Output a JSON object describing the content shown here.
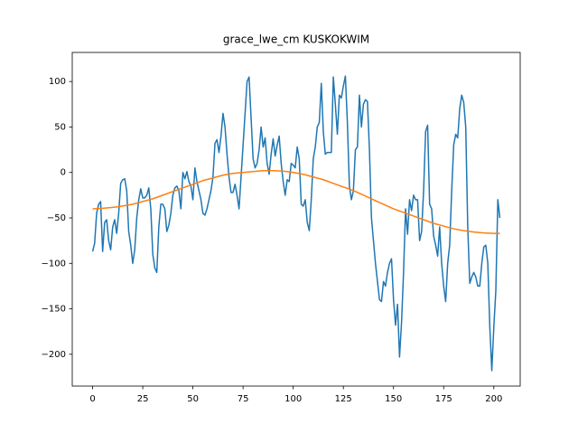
{
  "chart_data": {
    "type": "line",
    "title": "grace_lwe_cm KUSKOKWIM",
    "xlim": [
      -10.15,
      213.15
    ],
    "ylim": [
      -235,
      132
    ],
    "xticks": [
      0,
      25,
      50,
      75,
      100,
      125,
      150,
      175,
      200
    ],
    "yticks": [
      {
        "value": -200,
        "label": "−200"
      },
      {
        "value": -150,
        "label": "−150"
      },
      {
        "value": -100,
        "label": "−100"
      },
      {
        "value": -50,
        "label": "−50"
      },
      0,
      50,
      100
    ],
    "grid": false,
    "series": [
      {
        "color": "#1f77b4",
        "x": [
          0,
          1,
          2,
          3,
          4,
          5,
          6,
          7,
          8,
          9,
          10,
          11,
          12,
          13,
          14,
          15,
          16,
          17,
          18,
          19,
          20,
          21,
          22,
          23,
          24,
          25,
          26,
          27,
          28,
          29,
          30,
          31,
          32,
          33,
          34,
          35,
          36,
          37,
          38,
          39,
          40,
          41,
          42,
          43,
          44,
          45,
          46,
          47,
          48,
          49,
          50,
          51,
          52,
          53,
          54,
          55,
          56,
          57,
          58,
          59,
          60,
          61,
          62,
          63,
          64,
          65,
          66,
          67,
          68,
          69,
          70,
          71,
          72,
          73,
          74,
          75,
          76,
          77,
          78,
          79,
          80,
          81,
          82,
          83,
          84,
          85,
          86,
          87,
          88,
          89,
          90,
          91,
          92,
          93,
          94,
          95,
          96,
          97,
          98,
          99,
          100,
          101,
          102,
          103,
          104,
          105,
          106,
          107,
          108,
          109,
          110,
          111,
          112,
          113,
          114,
          115,
          116,
          117,
          118,
          119,
          120,
          121,
          122,
          123,
          124,
          125,
          126,
          127,
          128,
          129,
          130,
          131,
          132,
          133,
          134,
          135,
          136,
          137,
          138,
          139,
          140,
          141,
          142,
          143,
          144,
          145,
          146,
          147,
          148,
          149,
          150,
          151,
          152,
          153,
          154,
          155,
          156,
          157,
          158,
          159,
          160,
          161,
          162,
          163,
          164,
          165,
          166,
          167,
          168,
          169,
          170,
          171,
          172,
          173,
          174,
          175,
          176,
          177,
          178,
          179,
          180,
          181,
          182,
          183,
          184,
          185,
          186,
          187,
          188,
          189,
          190,
          191,
          192,
          193,
          194,
          195,
          196,
          197,
          198,
          199,
          200,
          201,
          202,
          203
        ],
        "values": [
          -87,
          -78,
          -45,
          -35,
          -32,
          -87,
          -55,
          -52,
          -75,
          -85,
          -60,
          -52,
          -67,
          -45,
          -12,
          -8,
          -7,
          -20,
          -65,
          -80,
          -100,
          -85,
          -50,
          -30,
          -18,
          -28,
          -28,
          -25,
          -17,
          -40,
          -90,
          -105,
          -110,
          -60,
          -35,
          -35,
          -40,
          -65,
          -58,
          -45,
          -25,
          -17,
          -15,
          -20,
          -40,
          0,
          -7,
          1,
          -10,
          -15,
          -30,
          5,
          -10,
          -20,
          -30,
          -45,
          -47,
          -40,
          -30,
          -20,
          -5,
          32,
          36,
          22,
          40,
          65,
          50,
          20,
          -5,
          -22,
          -22,
          -13,
          -25,
          -40,
          -5,
          30,
          65,
          100,
          105,
          60,
          15,
          5,
          10,
          25,
          50,
          28,
          38,
          10,
          -2,
          20,
          37,
          18,
          30,
          40,
          10,
          -10,
          -25,
          -8,
          -10,
          10,
          8,
          5,
          28,
          15,
          -35,
          -37,
          -30,
          -55,
          -64,
          -30,
          15,
          28,
          50,
          55,
          98,
          45,
          20,
          22,
          22,
          22,
          105,
          75,
          42,
          85,
          82,
          95,
          106,
          55,
          -15,
          -30,
          -20,
          25,
          28,
          85,
          50,
          75,
          80,
          78,
          25,
          -50,
          -75,
          -100,
          -120,
          -140,
          -142,
          -120,
          -125,
          -110,
          -100,
          -95,
          -140,
          -168,
          -145,
          -203,
          -165,
          -110,
          -40,
          -68,
          -30,
          -42,
          -25,
          -30,
          -30,
          -75,
          -65,
          -20,
          45,
          52,
          -35,
          -40,
          -70,
          -80,
          -92,
          -60,
          -100,
          -125,
          -142,
          -100,
          -80,
          -20,
          30,
          42,
          38,
          70,
          85,
          77,
          50,
          -60,
          -122,
          -115,
          -110,
          -115,
          -125,
          -125,
          -100,
          -82,
          -80,
          -100,
          -170,
          -218,
          -170,
          -130,
          -30,
          -50
        ]
      },
      {
        "color": "#ff7f0e",
        "x": [
          0,
          5,
          10,
          15,
          20,
          25,
          30,
          35,
          40,
          45,
          50,
          55,
          60,
          65,
          70,
          75,
          80,
          85,
          90,
          95,
          100,
          105,
          110,
          115,
          120,
          125,
          130,
          135,
          140,
          145,
          150,
          155,
          160,
          165,
          170,
          175,
          180,
          185,
          190,
          195,
          200,
          203
        ],
        "values": [
          -40,
          -39.5,
          -38.5,
          -37,
          -35,
          -32,
          -29,
          -25,
          -21,
          -17,
          -13,
          -9,
          -6,
          -3,
          -1,
          0,
          1,
          2,
          2,
          1.5,
          0,
          -2,
          -5,
          -8,
          -12,
          -16,
          -20,
          -25,
          -30,
          -35,
          -40,
          -44,
          -48,
          -52,
          -56,
          -59,
          -62,
          -64,
          -65.5,
          -66.5,
          -67,
          -67
        ]
      }
    ]
  }
}
